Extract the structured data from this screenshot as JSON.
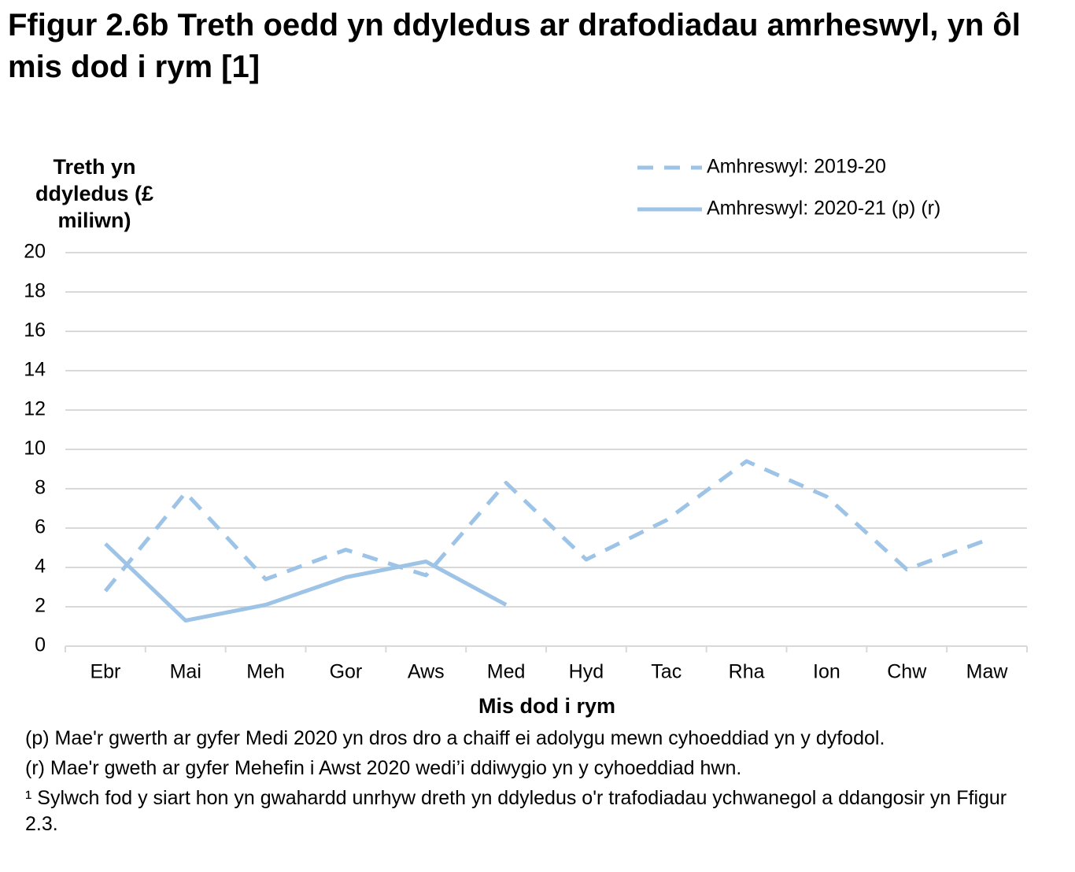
{
  "chart_data": {
    "type": "line",
    "title": "Ffigur 2.6b  Treth oedd yn ddyledus ar drafodiadau amrheswyl, yn ôl mis dod i rym [1]",
    "y_label": "Treth yn ddyledus (£ miliwn)",
    "x_label": "Mis dod i rym",
    "categories": [
      "Ebr",
      "Mai",
      "Meh",
      "Gor",
      "Aws",
      "Med",
      "Hyd",
      "Tac",
      "Rha",
      "Ion",
      "Chw",
      "Maw"
    ],
    "series": [
      {
        "name": "Amhreswyl: 2019-20",
        "color": "#9dc3e6",
        "dashed": true,
        "values": [
          2.8,
          7.8,
          3.4,
          4.9,
          3.6,
          8.3,
          4.4,
          6.4,
          9.4,
          7.6,
          3.9,
          5.4
        ]
      },
      {
        "name": "Amhreswyl: 2020-21 (p) (r)",
        "color": "#9dc3e6",
        "dashed": false,
        "values": [
          5.2,
          1.3,
          2.1,
          3.5,
          4.3,
          2.1,
          null,
          null,
          null,
          null,
          null,
          null
        ]
      }
    ],
    "ylim": [
      0,
      20
    ],
    "yticks": [
      0,
      2,
      4,
      6,
      8,
      10,
      12,
      14,
      16,
      18,
      20
    ],
    "grid": true,
    "legend": "top-right",
    "notes": [
      "(p) Mae'r gwerth ar gyfer Medi 2020 yn dros dro a chaiff ei adolygu mewn cyhoeddiad yn y dyfodol.",
      "(r) Mae'r gweth ar gyfer Mehefin i Awst 2020 wedi’i ddiwygio yn y cyhoeddiad hwn.",
      "¹ Sylwch fod y siart hon yn gwahardd unrhyw dreth yn ddyledus o'r trafodiadau ychwanegol a ddangosir yn Ffigur 2.3."
    ]
  }
}
